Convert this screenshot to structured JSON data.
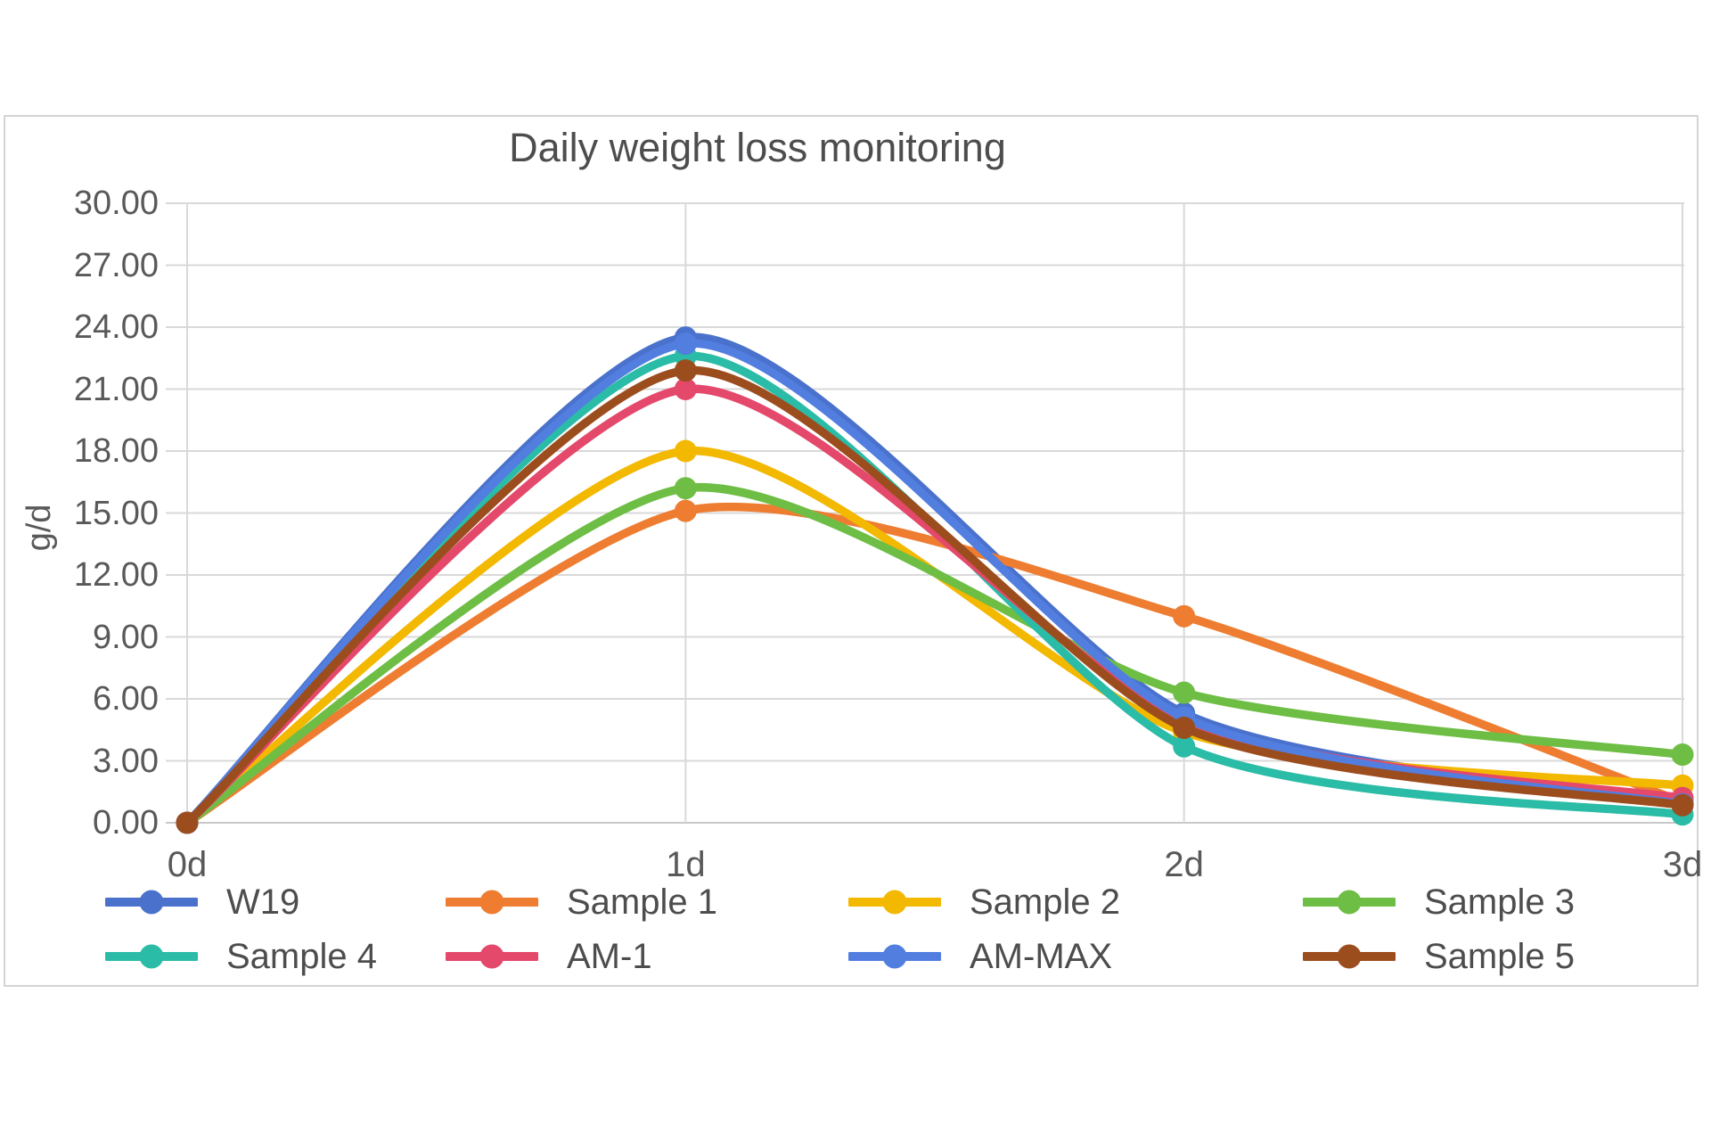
{
  "chart_data": {
    "type": "line",
    "title": "Daily weight loss monitoring",
    "xlabel": "",
    "ylabel": "g/d",
    "categories": [
      "0d",
      "1d",
      "2d",
      "3d"
    ],
    "series": [
      {
        "name": "W19",
        "color": "#4a72cc",
        "values": [
          0.0,
          23.5,
          5.3,
          1.0
        ]
      },
      {
        "name": "Sample 1",
        "color": "#ee7d31",
        "values": [
          0.0,
          15.1,
          10.0,
          1.0
        ]
      },
      {
        "name": "Sample 2",
        "color": "#f3b800",
        "values": [
          0.0,
          18.0,
          4.4,
          1.8
        ]
      },
      {
        "name": "Sample 3",
        "color": "#6ebe45",
        "values": [
          0.0,
          16.2,
          6.3,
          3.3
        ]
      },
      {
        "name": "Sample 4",
        "color": "#2abca6",
        "values": [
          0.0,
          22.6,
          3.7,
          0.4
        ]
      },
      {
        "name": "AM-1",
        "color": "#e4486b",
        "values": [
          0.0,
          21.0,
          4.9,
          1.2
        ]
      },
      {
        "name": "AM-MAX",
        "color": "#527ee0",
        "values": [
          0.0,
          23.2,
          5.1,
          0.9
        ]
      },
      {
        "name": "Sample 5",
        "color": "#9c4d1d",
        "values": [
          0.0,
          21.9,
          4.6,
          0.85
        ]
      }
    ],
    "ylim": [
      0,
      30
    ],
    "y_tick_step": 3,
    "y_tick_labels": [
      "0.00",
      "3.00",
      "6.00",
      "9.00",
      "12.00",
      "15.00",
      "18.00",
      "21.00",
      "24.00",
      "27.00",
      "30.00"
    ],
    "grid": true,
    "smoothed_lines": true,
    "legend_position": "bottom",
    "legend_rows": [
      [
        "W19",
        "Sample 1",
        "Sample 2",
        "Sample 3"
      ],
      [
        "Sample 4",
        "AM-1",
        "AM-MAX",
        "Sample 5"
      ]
    ]
  },
  "styles": {
    "grid_color": "#d9d9d9",
    "baseline_color": "#c8c8c8",
    "axis_text_color": "#595959",
    "title_color": "#4d4d4d",
    "frame_border_color": "#d4d4d4"
  }
}
